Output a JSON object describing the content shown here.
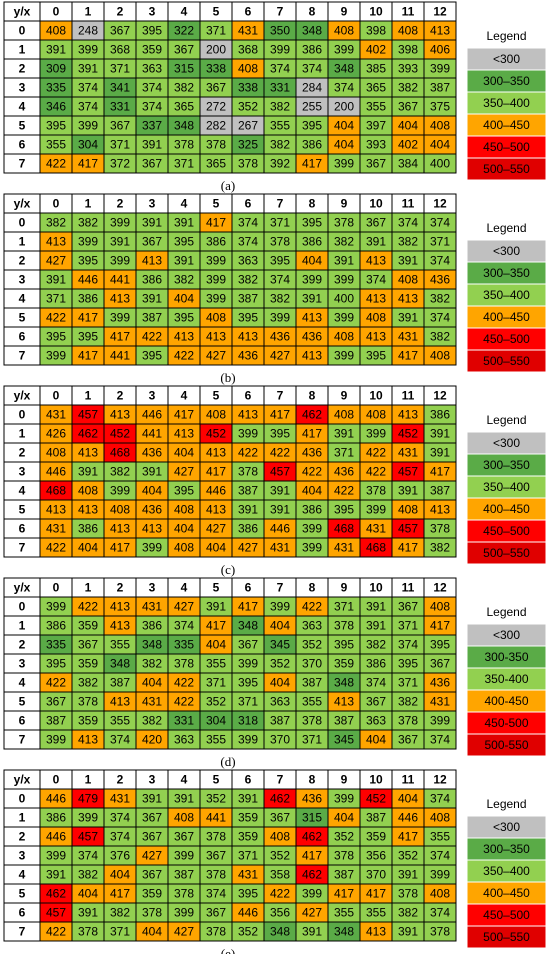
{
  "chart_data": [
    {
      "type": "heatmap",
      "caption": "(a)",
      "corner_label": "y/x",
      "x": [
        0,
        1,
        2,
        3,
        4,
        5,
        6,
        7,
        8,
        9,
        10,
        11,
        12
      ],
      "y": [
        0,
        1,
        2,
        3,
        4,
        5,
        6,
        7
      ],
      "values": [
        [
          408,
          248,
          367,
          395,
          322,
          371,
          431,
          350,
          348,
          408,
          398,
          408,
          413
        ],
        [
          391,
          399,
          368,
          359,
          367,
          200,
          368,
          399,
          386,
          399,
          402,
          398,
          406
        ],
        [
          309,
          391,
          371,
          363,
          315,
          338,
          408,
          374,
          374,
          348,
          385,
          393,
          399
        ],
        [
          335,
          374,
          341,
          374,
          382,
          367,
          338,
          331,
          284,
          374,
          365,
          382,
          387
        ],
        [
          346,
          374,
          331,
          374,
          365,
          272,
          352,
          382,
          255,
          200,
          355,
          367,
          375
        ],
        [
          395,
          399,
          367,
          337,
          348,
          282,
          267,
          355,
          395,
          404,
          397,
          404,
          408
        ],
        [
          355,
          304,
          371,
          391,
          378,
          378,
          325,
          382,
          386,
          404,
          393,
          402,
          404
        ],
        [
          422,
          417,
          372,
          367,
          371,
          365,
          378,
          392,
          417,
          399,
          367,
          384,
          400
        ]
      ],
      "legend_title": "Legend",
      "legend": [
        {
          "label": "<300",
          "max": 300,
          "color": "#c0c0c0"
        },
        {
          "label": "300–350",
          "max": 350,
          "color": "#5aab47"
        },
        {
          "label": "350–400",
          "max": 400,
          "color": "#92d050"
        },
        {
          "label": "400–450",
          "max": 450,
          "color": "#ffa500"
        },
        {
          "label": "450–500",
          "max": 500,
          "color": "#ff0000"
        },
        {
          "label": "500–550",
          "max": 550,
          "color": "#e00000"
        }
      ]
    },
    {
      "type": "heatmap",
      "caption": "(b)",
      "corner_label": "y/x",
      "x": [
        0,
        1,
        2,
        3,
        4,
        5,
        6,
        7,
        8,
        9,
        10,
        11,
        12
      ],
      "y": [
        0,
        1,
        2,
        3,
        4,
        5,
        6,
        7
      ],
      "values": [
        [
          382,
          382,
          399,
          391,
          391,
          417,
          374,
          371,
          395,
          378,
          367,
          374,
          374
        ],
        [
          413,
          399,
          391,
          367,
          395,
          386,
          374,
          378,
          386,
          382,
          391,
          382,
          371
        ],
        [
          427,
          395,
          399,
          413,
          391,
          399,
          363,
          395,
          404,
          391,
          413,
          391,
          374
        ],
        [
          391,
          446,
          441,
          386,
          382,
          399,
          382,
          374,
          399,
          399,
          374,
          408,
          436
        ],
        [
          371,
          386,
          413,
          391,
          404,
          399,
          387,
          382,
          391,
          400,
          413,
          413,
          382
        ],
        [
          422,
          417,
          399,
          387,
          395,
          408,
          395,
          399,
          413,
          399,
          408,
          391,
          374
        ],
        [
          395,
          395,
          417,
          422,
          413,
          413,
          413,
          436,
          436,
          408,
          413,
          431,
          382
        ],
        [
          399,
          417,
          441,
          395,
          422,
          427,
          436,
          427,
          413,
          399,
          395,
          417,
          408
        ]
      ],
      "legend_title": "Legend",
      "legend": [
        {
          "label": "<300",
          "max": 300,
          "color": "#c0c0c0"
        },
        {
          "label": "300–350",
          "max": 350,
          "color": "#5aab47"
        },
        {
          "label": "350–400",
          "max": 400,
          "color": "#92d050"
        },
        {
          "label": "400–450",
          "max": 450,
          "color": "#ffa500"
        },
        {
          "label": "450–500",
          "max": 500,
          "color": "#ff0000"
        },
        {
          "label": "500–550",
          "max": 550,
          "color": "#e00000"
        }
      ]
    },
    {
      "type": "heatmap",
      "caption": "(c)",
      "corner_label": "y/x",
      "x": [
        0,
        1,
        2,
        3,
        4,
        5,
        6,
        7,
        8,
        9,
        10,
        11,
        12
      ],
      "y": [
        0,
        1,
        2,
        3,
        4,
        5,
        6,
        7
      ],
      "values": [
        [
          431,
          457,
          413,
          446,
          417,
          408,
          413,
          417,
          462,
          408,
          408,
          413,
          386
        ],
        [
          426,
          462,
          452,
          441,
          413,
          452,
          399,
          395,
          417,
          391,
          399,
          452,
          391
        ],
        [
          408,
          413,
          468,
          436,
          404,
          413,
          422,
          422,
          436,
          371,
          422,
          431,
          391
        ],
        [
          446,
          391,
          382,
          391,
          427,
          417,
          378,
          457,
          422,
          436,
          422,
          457,
          417
        ],
        [
          468,
          408,
          399,
          404,
          395,
          446,
          387,
          391,
          404,
          422,
          378,
          391,
          387
        ],
        [
          413,
          413,
          408,
          436,
          408,
          413,
          391,
          391,
          386,
          395,
          399,
          408,
          413
        ],
        [
          431,
          386,
          413,
          413,
          404,
          427,
          386,
          446,
          399,
          468,
          431,
          457,
          378
        ],
        [
          422,
          404,
          417,
          399,
          408,
          404,
          427,
          431,
          399,
          431,
          468,
          417,
          382
        ]
      ],
      "legend_title": "Legend",
      "legend": [
        {
          "label": "<300",
          "max": 300,
          "color": "#c0c0c0"
        },
        {
          "label": "300–350",
          "max": 350,
          "color": "#5aab47"
        },
        {
          "label": "350–400",
          "max": 400,
          "color": "#92d050"
        },
        {
          "label": "400–450",
          "max": 450,
          "color": "#ffa500"
        },
        {
          "label": "450–500",
          "max": 500,
          "color": "#ff0000"
        },
        {
          "label": "500–550",
          "max": 550,
          "color": "#e00000"
        }
      ]
    },
    {
      "type": "heatmap",
      "caption": "(d)",
      "corner_label": "y/x",
      "x": [
        0,
        1,
        2,
        3,
        4,
        5,
        6,
        7,
        8,
        9,
        10,
        11,
        12
      ],
      "y": [
        0,
        1,
        2,
        3,
        4,
        5,
        6,
        7
      ],
      "values": [
        [
          399,
          422,
          413,
          431,
          427,
          391,
          417,
          399,
          422,
          371,
          391,
          367,
          408
        ],
        [
          386,
          359,
          413,
          386,
          374,
          417,
          348,
          404,
          363,
          378,
          391,
          371,
          417
        ],
        [
          335,
          367,
          355,
          348,
          335,
          404,
          367,
          345,
          352,
          395,
          382,
          374,
          395
        ],
        [
          395,
          359,
          348,
          382,
          378,
          355,
          399,
          352,
          370,
          359,
          386,
          395,
          367
        ],
        [
          422,
          382,
          387,
          404,
          422,
          371,
          395,
          404,
          387,
          348,
          374,
          371,
          436
        ],
        [
          367,
          378,
          413,
          431,
          422,
          352,
          371,
          363,
          355,
          413,
          367,
          382,
          431
        ],
        [
          387,
          359,
          355,
          382,
          331,
          304,
          318,
          387,
          378,
          387,
          363,
          378,
          399
        ],
        [
          399,
          413,
          374,
          420,
          363,
          355,
          399,
          370,
          371,
          345,
          404,
          367,
          374
        ]
      ],
      "legend_title": "Legend",
      "legend": [
        {
          "label": "<300",
          "max": 300,
          "color": "#c0c0c0"
        },
        {
          "label": "300-350",
          "max": 350,
          "color": "#5aab47"
        },
        {
          "label": "350-400",
          "max": 400,
          "color": "#92d050"
        },
        {
          "label": "400-450",
          "max": 450,
          "color": "#ffa500"
        },
        {
          "label": "450-500",
          "max": 500,
          "color": "#ff0000"
        },
        {
          "label": "500-550",
          "max": 550,
          "color": "#e00000"
        }
      ]
    },
    {
      "type": "heatmap",
      "caption": "(e)",
      "corner_label": "y/x",
      "x": [
        0,
        1,
        2,
        3,
        4,
        5,
        6,
        7,
        8,
        9,
        10,
        11,
        12
      ],
      "y": [
        0,
        1,
        2,
        3,
        4,
        5,
        6,
        7
      ],
      "values": [
        [
          446,
          479,
          431,
          391,
          391,
          352,
          391,
          462,
          436,
          399,
          452,
          404,
          374
        ],
        [
          386,
          399,
          374,
          367,
          408,
          441,
          359,
          367,
          315,
          404,
          387,
          446,
          408
        ],
        [
          446,
          457,
          374,
          367,
          367,
          378,
          359,
          408,
          462,
          352,
          359,
          417,
          355
        ],
        [
          399,
          374,
          376,
          427,
          399,
          367,
          371,
          352,
          417,
          378,
          356,
          352,
          374
        ],
        [
          391,
          382,
          404,
          367,
          387,
          378,
          431,
          358,
          462,
          387,
          370,
          391,
          399
        ],
        [
          462,
          404,
          417,
          359,
          378,
          374,
          395,
          422,
          399,
          417,
          417,
          378,
          408
        ],
        [
          457,
          391,
          382,
          378,
          399,
          367,
          446,
          356,
          427,
          355,
          355,
          382,
          374
        ],
        [
          422,
          378,
          371,
          404,
          427,
          378,
          352,
          348,
          391,
          348,
          413,
          391,
          378
        ]
      ],
      "legend_title": "Legend",
      "legend": [
        {
          "label": "<300",
          "max": 300,
          "color": "#c0c0c0"
        },
        {
          "label": "300–350",
          "max": 350,
          "color": "#5aab47"
        },
        {
          "label": "350–400",
          "max": 400,
          "color": "#92d050"
        },
        {
          "label": "400–450",
          "max": 450,
          "color": "#ffa500"
        },
        {
          "label": "450–500",
          "max": 500,
          "color": "#ff0000"
        },
        {
          "label": "500–550",
          "max": 550,
          "color": "#e00000"
        }
      ]
    }
  ]
}
